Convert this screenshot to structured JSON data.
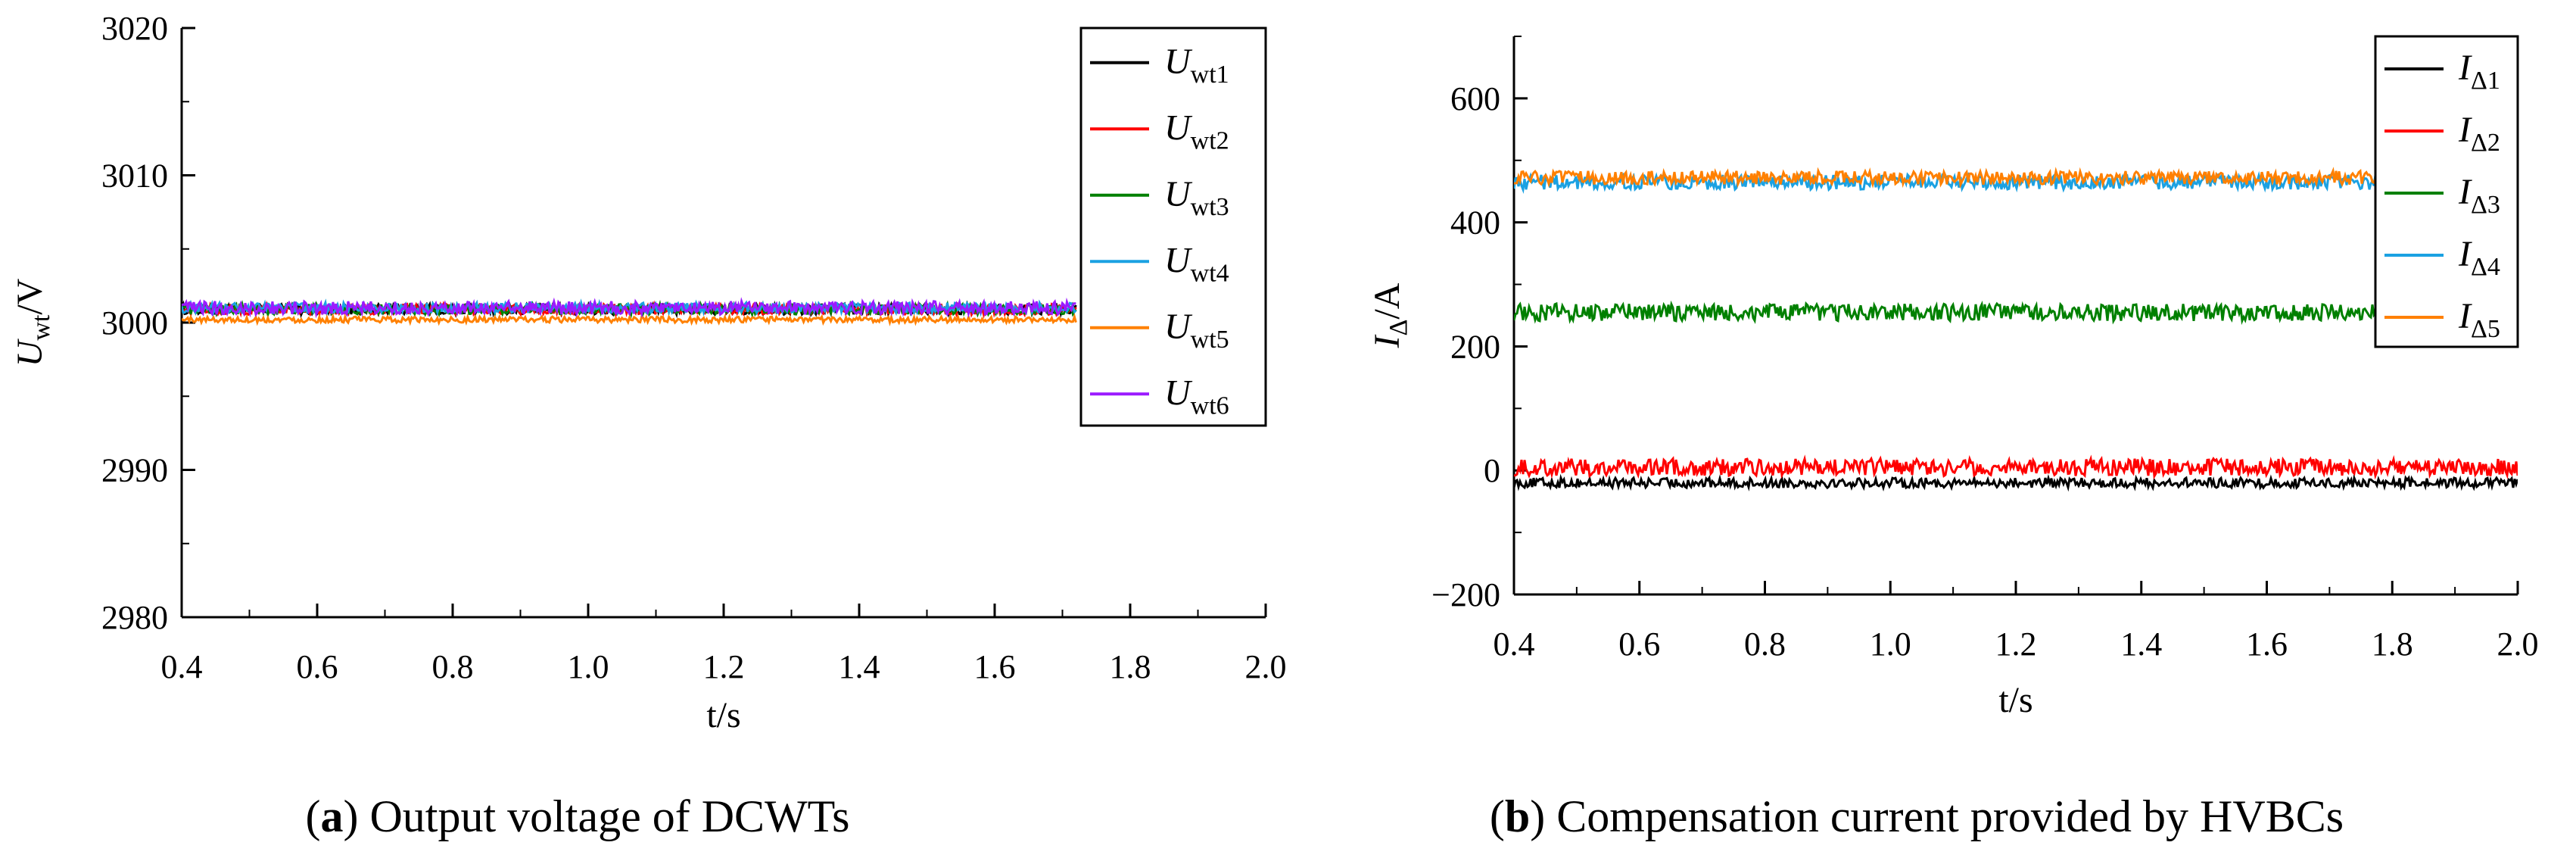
{
  "chart_data": [
    {
      "type": "line",
      "panel_tag": "a",
      "caption": "Output voltage of DCWTs",
      "xlabel": "t/s",
      "ylabel_main": "U",
      "ylabel_sub": "wt",
      "ylabel_unit": "/V",
      "xlim": [
        0.4,
        2.0
      ],
      "ylim": [
        2980,
        3020
      ],
      "xticks": [
        0.4,
        0.6,
        0.8,
        1.0,
        1.2,
        1.4,
        1.6,
        1.8,
        2.0
      ],
      "xtick_labels": [
        "0.4",
        "0.6",
        "0.8",
        "1.0",
        "1.2",
        "1.4",
        "1.6",
        "1.8",
        "2.0"
      ],
      "yticks": [
        2980,
        2990,
        3000,
        3010,
        3020
      ],
      "ytick_labels": [
        "2980",
        "2990",
        "3000",
        "3010",
        "3020"
      ],
      "data_x_range": [
        0.4,
        1.72
      ],
      "legend_location": "top-right",
      "series": [
        {
          "name": "U",
          "sub": "wt1",
          "color": "#000000",
          "mean": 3000.9,
          "noise": 0.35,
          "width": 3
        },
        {
          "name": "U",
          "sub": "wt2",
          "color": "#ff0000",
          "mean": 3000.9,
          "noise": 0.35,
          "width": 3
        },
        {
          "name": "U",
          "sub": "wt3",
          "color": "#008000",
          "mean": 3000.9,
          "noise": 0.35,
          "width": 3
        },
        {
          "name": "U",
          "sub": "wt4",
          "color": "#1ba1e2",
          "mean": 3001.0,
          "noise": 0.35,
          "width": 3
        },
        {
          "name": "U",
          "sub": "wt5",
          "color": "#ff8000",
          "mean": 3000.2,
          "noise": 0.2,
          "width": 3
        },
        {
          "name": "U",
          "sub": "wt6",
          "color": "#9b1aff",
          "mean": 3001.0,
          "noise": 0.45,
          "width": 3
        }
      ]
    },
    {
      "type": "line",
      "panel_tag": "b",
      "caption": "Compensation current provided by HVBCs",
      "xlabel": "t/s",
      "ylabel_main": "I",
      "ylabel_sub": "Δ",
      "ylabel_unit": "/A",
      "xlim": [
        0.4,
        2.0
      ],
      "ylim": [
        -200,
        700
      ],
      "xticks": [
        0.4,
        0.6,
        0.8,
        1.0,
        1.2,
        1.4,
        1.6,
        1.8,
        2.0
      ],
      "xtick_labels": [
        "0.4",
        "0.6",
        "0.8",
        "1.0",
        "1.2",
        "1.4",
        "1.6",
        "1.8",
        "2.0"
      ],
      "yticks": [
        -200,
        0,
        200,
        400,
        600
      ],
      "ytick_labels": [
        "−200",
        "0",
        "200",
        "400",
        "600"
      ],
      "data_x_range": [
        0.4,
        2.0
      ],
      "legend_location": "top-right",
      "series": [
        {
          "name": "I",
          "sub": "Δ1",
          "color": "#000000",
          "mean": -20,
          "noise": 8,
          "width": 3
        },
        {
          "name": "I",
          "sub": "Δ2",
          "color": "#ff0000",
          "mean": 5,
          "noise": 14,
          "width": 3
        },
        {
          "name": "I",
          "sub": "Δ3",
          "color": "#008000",
          "mean": 255,
          "noise": 14,
          "width": 3
        },
        {
          "name": "I",
          "sub": "Δ4",
          "color": "#1ba1e2",
          "mean": 465,
          "noise": 12,
          "width": 3
        },
        {
          "name": "I",
          "sub": "Δ5",
          "color": "#ff8000",
          "mean": 472,
          "noise": 11,
          "width": 3
        }
      ]
    }
  ]
}
